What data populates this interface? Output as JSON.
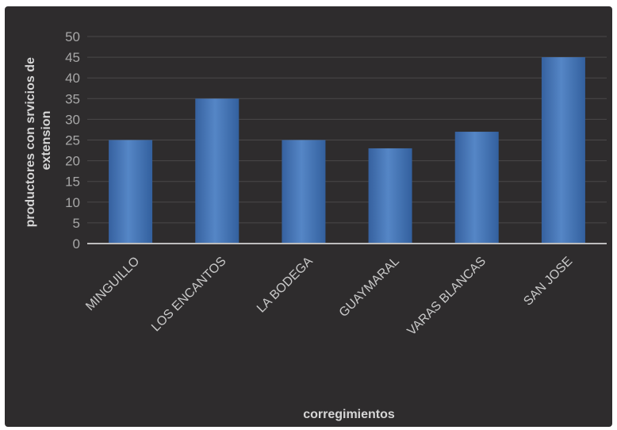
{
  "chart_data": {
    "type": "bar",
    "categories": [
      "MINGUILLO",
      "LOS ENCANTOS",
      "LA BODEGA",
      "GUAYMARAL",
      "VARAS BLANCAS",
      "SAN JOSE"
    ],
    "values": [
      25,
      35,
      25,
      23,
      27,
      45
    ],
    "xlabel": "corregimientos",
    "ylabel_line1": "productores con srvicios de",
    "ylabel_line2": "extension",
    "ylim": [
      0,
      50
    ],
    "yticks": [
      0,
      5,
      10,
      15,
      20,
      25,
      30,
      35,
      40,
      45,
      50
    ],
    "grid": true,
    "colors": {
      "background": "#2e2c2d",
      "bar": "#3f6fb4",
      "bar_highlight": "#5a88c9",
      "grid": "#4a4849",
      "axis": "#bdbdbd"
    }
  }
}
